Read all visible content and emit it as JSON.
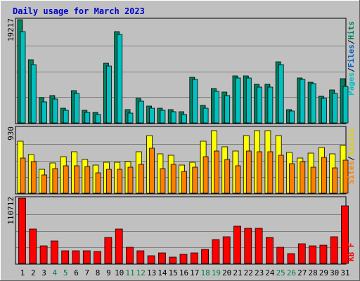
{
  "chart_data": {
    "type": "bar",
    "title": "Daily usage for March 2023",
    "days": [
      "1",
      "2",
      "3",
      "4",
      "5",
      "6",
      "7",
      "8",
      "9",
      "10",
      "11",
      "12",
      "13",
      "14",
      "15",
      "16",
      "17",
      "18",
      "19",
      "20",
      "21",
      "22",
      "23",
      "24",
      "25",
      "26",
      "27",
      "28",
      "29",
      "30",
      "31"
    ],
    "weekend_days": [
      "4",
      "5",
      "11",
      "12",
      "18",
      "19",
      "25",
      "26"
    ],
    "panels": [
      {
        "id": "pages_files_hits",
        "ymax_label": "19217",
        "ymax": 19217,
        "legend": [
          "Pages",
          "Files",
          "Hits"
        ],
        "series": [
          {
            "name": "Hits",
            "color": "#008060",
            "values": [
              19217,
              11710,
              4641,
              5121,
              2791,
              5992,
              2311,
              1949,
              11125,
              16980,
              2460,
              4589,
              3140,
              2725,
              2448,
              2106,
              8534,
              3268,
              6410,
              5795,
              8805,
              8805,
              7215,
              7215,
              11344,
              2548,
              8333,
              7597,
              4986,
              6100,
              8262
            ]
          },
          {
            "name": "Files",
            "color": "#00c0c0",
            "values": [
              16980,
              10869,
              3916,
              4426,
              2316,
              5553,
              1957,
              1597,
              10584,
              16461,
              1807,
              4108,
              2719,
              2297,
              2106,
              1618,
              8125,
              2752,
              5847,
              5136,
              8405,
              8405,
              6656,
              6646,
              10832,
              2198,
              8047,
              7304,
              4580,
              5553,
              6766
            ]
          },
          {
            "name": "Pages",
            "color": "#00e0ff",
            "values": [
              16980,
              10869,
              3916,
              4426,
              2316,
              5553,
              1957,
              1597,
              10584,
              16461,
              1807,
              4108,
              2719,
              2297,
              2106,
              1618,
              8125,
              2752,
              5847,
              5136,
              8405,
              8405,
              6656,
              6646,
              10832,
              2198,
              8047,
              7304,
              4580,
              5553,
              6766
            ]
          }
        ]
      },
      {
        "id": "visits_sites",
        "ymax_label": "930",
        "ymax": 930,
        "legend": [
          "Sites",
          "Visits"
        ],
        "series": [
          {
            "name": "Visits",
            "color": "#ffff00",
            "values": [
              744,
              553,
              337,
              430,
              523,
              592,
              476,
              399,
              442,
              442,
              445,
              593,
              821,
              563,
              543,
              398,
              444,
              737,
              892,
              657,
              602,
              820,
              894,
              894,
              817,
              579,
              498,
              569,
              649,
              563,
              684
            ]
          },
          {
            "name": "Sites",
            "color": "#ff8000",
            "values": [
              502,
              452,
              256,
              346,
              393,
              394,
              384,
              292,
              337,
              337,
              370,
              406,
              644,
              351,
              407,
              308,
              366,
              523,
              602,
              476,
              393,
              598,
              589,
              589,
              537,
              424,
              445,
              367,
              505,
              355,
              471
            ]
          }
        ]
      },
      {
        "id": "kb",
        "ymax_label": "110712",
        "ymax": 110712,
        "legend": [
          "KB",
          "F"
        ],
        "series": [
          {
            "name": "KB F",
            "color": "#ff0000",
            "values": [
              110712,
              58138,
              30000,
              38000,
              22000,
              22000,
              21000,
              20000,
              44000,
              58000,
              27000,
              21000,
              13000,
              18000,
              11000,
              16000,
              18000,
              24000,
              40000,
              45000,
              63000,
              59000,
              59000,
              44000,
              27000,
              17000,
              33000,
              30000,
              31000,
              45000,
              98000
            ]
          }
        ]
      }
    ]
  }
}
